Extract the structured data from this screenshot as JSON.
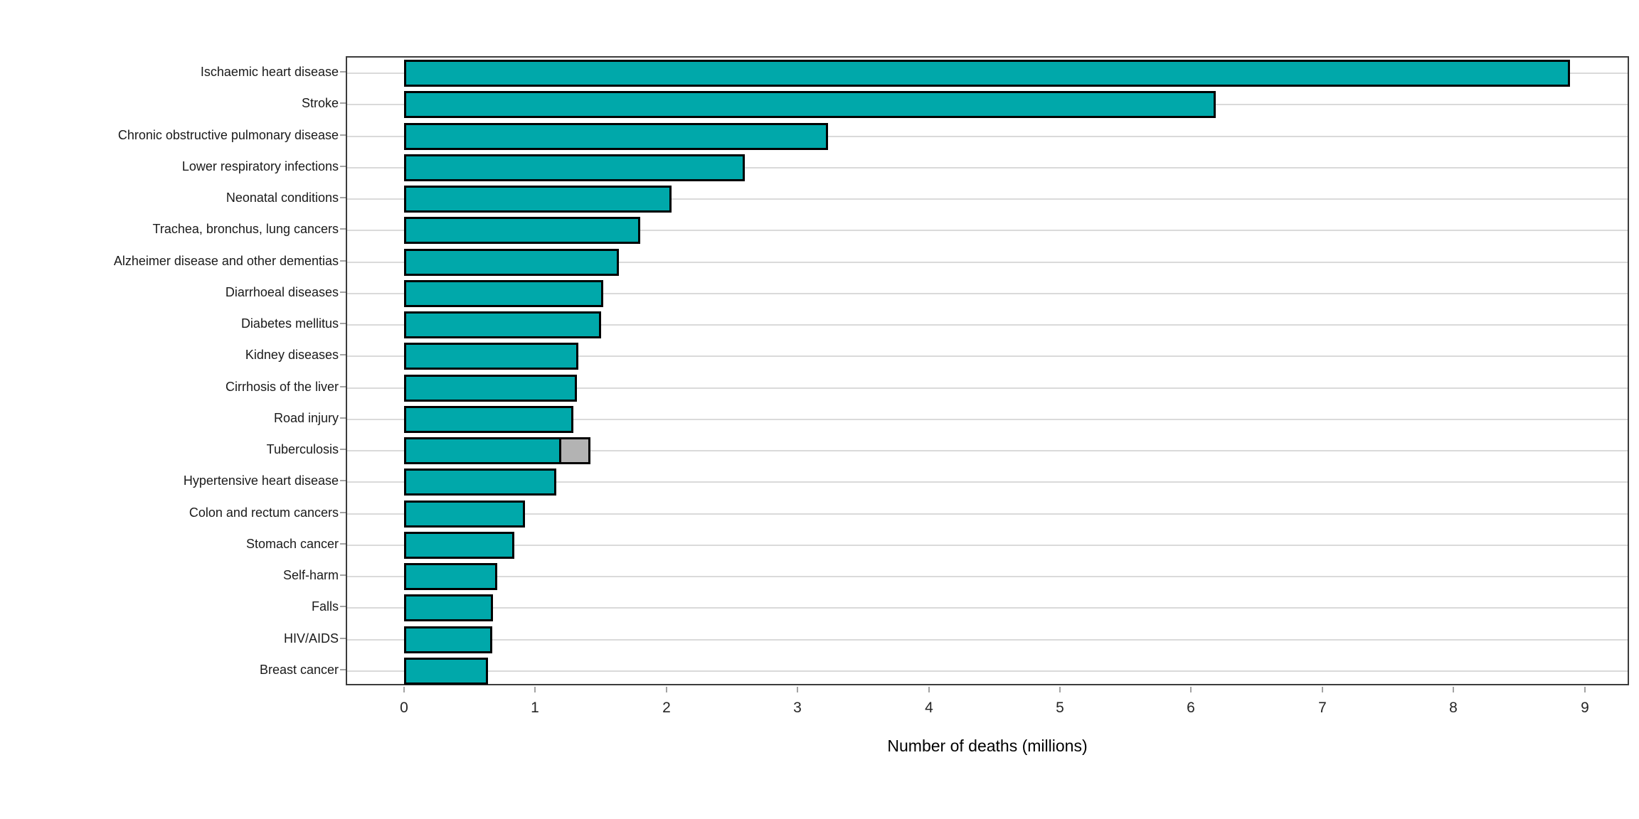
{
  "chart_data": {
    "type": "bar",
    "orientation": "horizontal",
    "title": "",
    "xlabel": "Number of deaths (millions)",
    "ylabel": "",
    "xlim": [
      0,
      9.35
    ],
    "x_ticks": [
      0,
      1,
      2,
      3,
      4,
      5,
      6,
      7,
      8,
      9
    ],
    "grid": "horizontal-only",
    "legend": "none",
    "categories": [
      "Ischaemic heart disease",
      "Stroke",
      "Chronic obstructive pulmonary disease",
      "Lower respiratory infections",
      "Neonatal conditions",
      "Trachea, bronchus, lung cancers",
      "Alzheimer disease and other dementias",
      "Diarrhoeal diseases",
      "Diabetes mellitus",
      "Kidney diseases",
      "Cirrhosis of the liver",
      "Road injury",
      "Tuberculosis",
      "Hypertensive heart disease",
      "Colon and rectum cancers",
      "Stomach cancer",
      "Self-harm",
      "Falls",
      "HIV/AIDS",
      "Breast cancer"
    ],
    "values": [
      8.89,
      6.19,
      3.23,
      2.6,
      2.04,
      1.8,
      1.64,
      1.52,
      1.5,
      1.33,
      1.32,
      1.29,
      1.2,
      1.16,
      0.92,
      0.84,
      0.71,
      0.68,
      0.67,
      0.64
    ],
    "stacked_extra_segment": {
      "category": "Tuberculosis",
      "value": 0.22,
      "total": 1.42,
      "color": "#b3b3b3"
    },
    "colors": {
      "bar_fill": "#00a8aa",
      "bar_stroke": "#000000",
      "extra_segment_fill": "#b3b3b3",
      "gridline": "#dadada",
      "panel_border": "#3c3c3c",
      "tick_mark": "#a3a3a3",
      "category_label": "#1a1a1a",
      "tick_label": "#262626",
      "axis_title": "#000000",
      "background": "#ffffff"
    }
  }
}
